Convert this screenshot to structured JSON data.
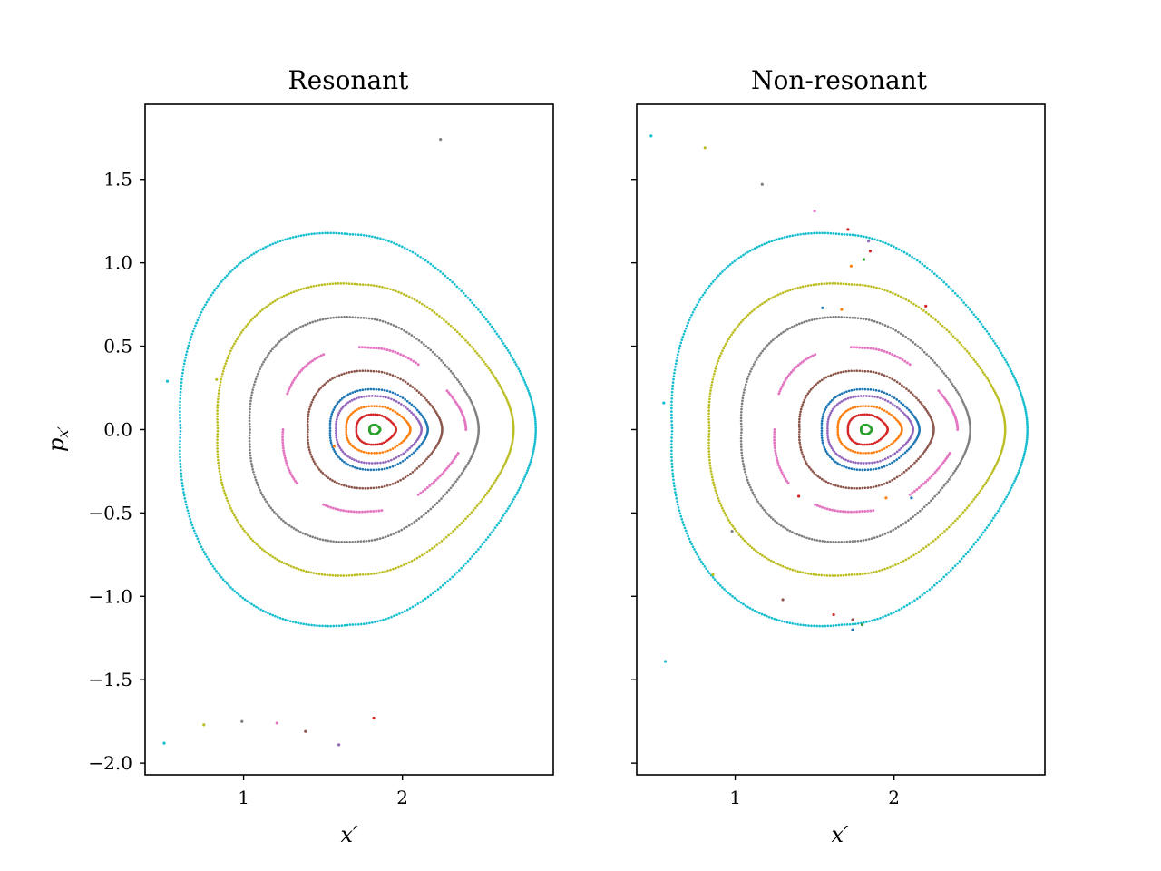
{
  "chart_data": {
    "type": "scatter",
    "series_colors": [
      "#1f77b4",
      "#ff7f0e",
      "#2ca02c",
      "#d62728",
      "#9467bd",
      "#8c564b",
      "#e377c2",
      "#7f7f7f",
      "#bcbd22",
      "#17becf"
    ],
    "panels": [
      {
        "title": "Resonant",
        "xlabel": "x′",
        "ylabel": "p",
        "ylabel_sub": "x′",
        "xlim": [
          0.38,
          2.95
        ],
        "ylim": [
          -2.07,
          1.95
        ],
        "xticks": [
          1,
          2
        ],
        "xtick_labels": [
          "1",
          "2"
        ],
        "yticks": [
          1.5,
          1.0,
          0.5,
          0.0,
          -0.5,
          -1.0,
          -1.5,
          -2.0
        ],
        "ytick_labels": [
          "1.5",
          "1.0",
          "0.5",
          "0.0",
          "−0.5",
          "−1.0",
          "−1.5",
          "−2.0"
        ],
        "orbits": [
          {
            "color": "#2ca02c",
            "xmin": 1.79,
            "xmax": 1.86,
            "pmax": 0.028,
            "pmin": -0.028
          },
          {
            "color": "#d62728",
            "xmin": 1.7,
            "xmax": 1.96,
            "pmax": 0.09,
            "pmin": -0.09
          },
          {
            "color": "#ff7f0e",
            "xmin": 1.63,
            "xmax": 2.05,
            "pmax": 0.14,
            "pmin": -0.14
          },
          {
            "color": "#9467bd",
            "xmin": 1.56,
            "xmax": 2.12,
            "pmax": 0.2,
            "pmin": -0.2
          },
          {
            "color": "#1f77b4",
            "xmin": 1.52,
            "xmax": 2.16,
            "pmax": 0.24,
            "pmin": -0.24
          },
          {
            "color": "#8c564b",
            "xmin": 1.37,
            "xmax": 2.25,
            "pmax": 0.35,
            "pmin": -0.35
          },
          {
            "color": "#e377c2",
            "xmin": 1.2,
            "xmax": 2.4,
            "pmax": 0.49,
            "pmin": -0.49,
            "gaps": 6
          },
          {
            "color": "#7f7f7f",
            "xmin": 0.98,
            "xmax": 2.48,
            "pmax": 0.67,
            "pmin": -0.67
          },
          {
            "color": "#bcbd22",
            "xmin": 0.76,
            "xmax": 2.7,
            "pmax": 0.87,
            "pmin": -0.87
          },
          {
            "color": "#17becf",
            "xmin": 0.51,
            "xmax": 2.84,
            "pmax": 1.17,
            "pmin": -1.17
          }
        ],
        "scatter_points": [
          {
            "x": 2.24,
            "y": 1.74,
            "color": "#7f7f7f"
          },
          {
            "x": 0.52,
            "y": 0.29,
            "color": "#17becf"
          },
          {
            "x": 0.83,
            "y": 0.3,
            "color": "#bcbd22"
          },
          {
            "x": 1.57,
            "y": -0.1,
            "color": "#ff7f0e"
          },
          {
            "x": 0.5,
            "y": -1.88,
            "color": "#17becf"
          },
          {
            "x": 0.75,
            "y": -1.77,
            "color": "#bcbd22"
          },
          {
            "x": 0.99,
            "y": -1.75,
            "color": "#7f7f7f"
          },
          {
            "x": 1.21,
            "y": -1.76,
            "color": "#e377c2"
          },
          {
            "x": 1.39,
            "y": -1.81,
            "color": "#8c564b"
          },
          {
            "x": 1.6,
            "y": -1.89,
            "color": "#9467bd"
          },
          {
            "x": 1.82,
            "y": -1.73,
            "color": "#d62728"
          }
        ]
      },
      {
        "title": "Non-resonant",
        "xlabel": "x′",
        "xlim": [
          0.38,
          2.95
        ],
        "ylim": [
          -2.07,
          1.95
        ],
        "xticks": [
          1,
          2
        ],
        "xtick_labels": [
          "1",
          "2"
        ],
        "yticks": [
          1.5,
          1.0,
          0.5,
          0.0,
          -0.5,
          -1.0,
          -1.5,
          -2.0
        ],
        "orbits": [
          {
            "color": "#2ca02c",
            "xmin": 1.79,
            "xmax": 1.86,
            "pmax": 0.028,
            "pmin": -0.028
          },
          {
            "color": "#d62728",
            "xmin": 1.7,
            "xmax": 1.96,
            "pmax": 0.09,
            "pmin": -0.09
          },
          {
            "color": "#ff7f0e",
            "xmin": 1.63,
            "xmax": 2.05,
            "pmax": 0.14,
            "pmin": -0.14
          },
          {
            "color": "#9467bd",
            "xmin": 1.56,
            "xmax": 2.12,
            "pmax": 0.2,
            "pmin": -0.2
          },
          {
            "color": "#1f77b4",
            "xmin": 1.52,
            "xmax": 2.16,
            "pmax": 0.24,
            "pmin": -0.24
          },
          {
            "color": "#8c564b",
            "xmin": 1.37,
            "xmax": 2.25,
            "pmax": 0.35,
            "pmin": -0.35
          },
          {
            "color": "#e377c2",
            "xmin": 1.2,
            "xmax": 2.4,
            "pmax": 0.49,
            "pmin": -0.49,
            "gaps": 6
          },
          {
            "color": "#7f7f7f",
            "xmin": 0.98,
            "xmax": 2.48,
            "pmax": 0.67,
            "pmin": -0.67
          },
          {
            "color": "#bcbd22",
            "xmin": 0.76,
            "xmax": 2.7,
            "pmax": 0.87,
            "pmin": -0.87
          },
          {
            "color": "#17becf",
            "xmin": 0.51,
            "xmax": 2.84,
            "pmax": 1.17,
            "pmin": -1.17
          }
        ],
        "scatter_points": [
          {
            "x": 0.47,
            "y": 1.76,
            "color": "#17becf"
          },
          {
            "x": 0.81,
            "y": 1.69,
            "color": "#bcbd22"
          },
          {
            "x": 1.17,
            "y": 1.47,
            "color": "#7f7f7f"
          },
          {
            "x": 1.5,
            "y": 1.31,
            "color": "#e377c2"
          },
          {
            "x": 1.71,
            "y": 1.2,
            "color": "#d62728"
          },
          {
            "x": 1.84,
            "y": 1.13,
            "color": "#9467bd"
          },
          {
            "x": 1.85,
            "y": 1.07,
            "color": "#d62728"
          },
          {
            "x": 1.81,
            "y": 1.02,
            "color": "#2ca02c"
          },
          {
            "x": 1.73,
            "y": 0.98,
            "color": "#ff7f0e"
          },
          {
            "x": 2.2,
            "y": 0.74,
            "color": "#d62728"
          },
          {
            "x": 1.55,
            "y": 0.73,
            "color": "#1f77b4"
          },
          {
            "x": 1.67,
            "y": 0.72,
            "color": "#ff7f0e"
          },
          {
            "x": 0.55,
            "y": 0.16,
            "color": "#17becf"
          },
          {
            "x": 1.4,
            "y": -0.4,
            "color": "#d62728"
          },
          {
            "x": 1.95,
            "y": -0.41,
            "color": "#ff7f0e"
          },
          {
            "x": 2.11,
            "y": -0.41,
            "color": "#1f77b4"
          },
          {
            "x": 0.98,
            "y": -0.61,
            "color": "#7f7f7f"
          },
          {
            "x": 0.86,
            "y": -0.87,
            "color": "#bcbd22"
          },
          {
            "x": 1.3,
            "y": -1.02,
            "color": "#8c564b"
          },
          {
            "x": 1.62,
            "y": -1.11,
            "color": "#d62728"
          },
          {
            "x": 1.74,
            "y": -1.14,
            "color": "#8c564b"
          },
          {
            "x": 1.8,
            "y": -1.17,
            "color": "#2ca02c"
          },
          {
            "x": 1.74,
            "y": -1.2,
            "color": "#1f77b4"
          },
          {
            "x": 0.56,
            "y": -1.39,
            "color": "#17becf"
          }
        ]
      }
    ]
  }
}
